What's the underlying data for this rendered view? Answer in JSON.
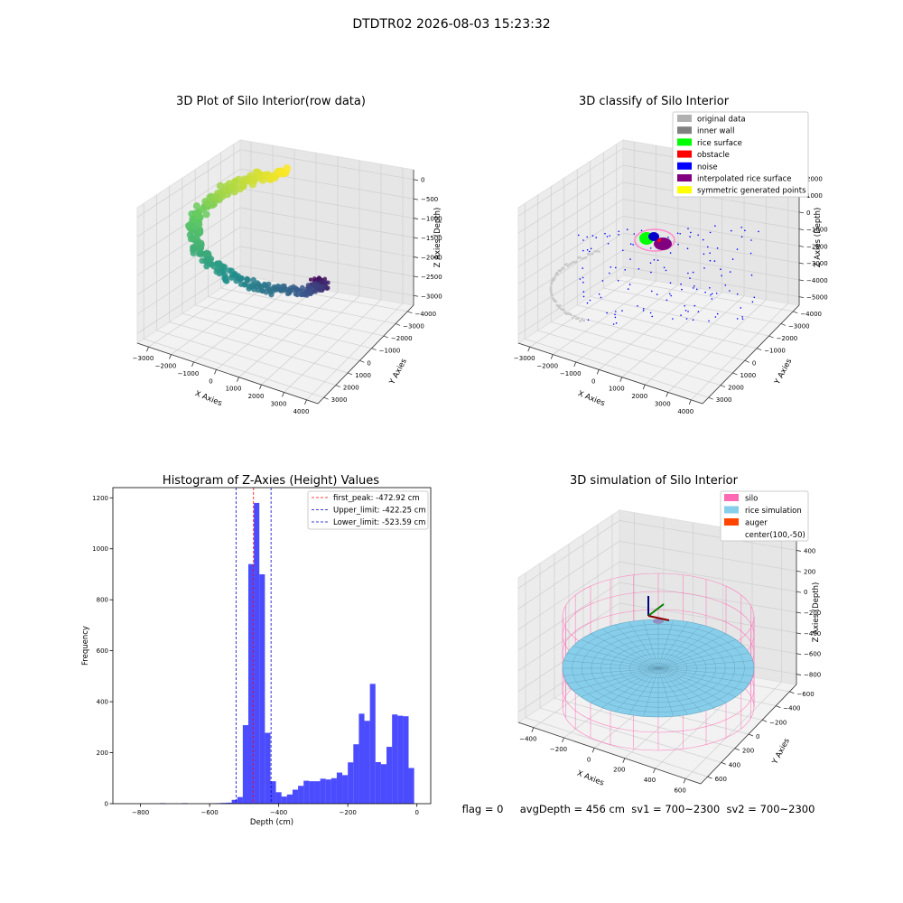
{
  "figure_title": "DTDTR02 2026-08-03 15:23:32",
  "footer_text": "flag = 0     avgDepth = 456 cm  sv1 = 700~2300  sv2 = 700~2300",
  "chart_data": [
    {
      "id": "raw3d",
      "type": "scatter",
      "title": "3D Plot of Silo Interior(row data)",
      "xlabel": "X Axies",
      "ylabel": "Y Axies",
      "zlabel": "Z Axies (Depth)",
      "x_ticks": [
        "−3000",
        "−2000",
        "−1000",
        "0",
        "1000",
        "2000",
        "3000",
        "4000"
      ],
      "y_ticks": [
        "−4000",
        "−3000",
        "−2000",
        "−1000",
        "0",
        "1000",
        "2000",
        "3000"
      ],
      "z_ticks": [
        "−3000",
        "−2500",
        "−2000",
        "−1500",
        "−1000",
        "−500",
        "0"
      ],
      "xlim": [
        -3600,
        4300
      ],
      "ylim": [
        -4300,
        3600
      ],
      "zlim": [
        -3400,
        200
      ],
      "colormap": [
        "#440154",
        "#3b528b",
        "#21918c",
        "#5ec962",
        "#fde725"
      ],
      "grid": true
    },
    {
      "id": "classify3d",
      "type": "scatter",
      "title": "3D classify of Silo Interior",
      "xlabel": "X Axies",
      "ylabel": "Y Axies",
      "zlabel": "Z Axies (Depth)",
      "x_ticks": [
        "−3000",
        "−2000",
        "−1000",
        "0",
        "1000",
        "2000",
        "3000",
        "4000"
      ],
      "y_ticks": [
        "−4000",
        "−3000",
        "−2000",
        "−1000",
        "0",
        "1000",
        "2000",
        "3000"
      ],
      "z_ticks": [
        "−5000",
        "−4000",
        "−3000",
        "−2000",
        "−1000",
        "0",
        "1000",
        "2000"
      ],
      "xlim": [
        -3600,
        4300
      ],
      "ylim": [
        -4300,
        3600
      ],
      "zlim": [
        -5300,
        2200
      ],
      "legend_position": "top-right",
      "legend": [
        {
          "label": "original data",
          "color": "#b0b0b0"
        },
        {
          "label": "inner wall",
          "color": "#808080"
        },
        {
          "label": "rice surface",
          "color": "#00ff00"
        },
        {
          "label": "obstacle",
          "color": "#ff0000"
        },
        {
          "label": "noise",
          "color": "#0000ff"
        },
        {
          "label": "interpolated rice surface",
          "color": "#800080"
        },
        {
          "label": "symmetric generated points",
          "color": "#ffff00"
        }
      ],
      "grid": true
    },
    {
      "id": "histogram",
      "type": "bar",
      "title": "Histogram of Z-Axies (Height) Values",
      "xlabel": "Depth (cm)",
      "ylabel": "Frequency",
      "xlim": [
        -880,
        40
      ],
      "ylim": [
        0,
        1240
      ],
      "x_ticks": [
        -800,
        -600,
        -400,
        -200,
        0
      ],
      "x_tick_labels": [
        "−800",
        "−600",
        "−400",
        "−200",
        "0"
      ],
      "y_ticks": [
        0,
        200,
        400,
        600,
        800,
        1000,
        1200
      ],
      "bar_color": "#0000ff",
      "bins": [
        {
          "x0": -744,
          "x1": -728,
          "value": 2
        },
        {
          "x0": -680,
          "x1": -664,
          "value": 2
        },
        {
          "x0": -600,
          "x1": -584,
          "value": 1
        },
        {
          "x0": -584,
          "x1": -568,
          "value": 2
        },
        {
          "x0": -568,
          "x1": -552,
          "value": 3
        },
        {
          "x0": -552,
          "x1": -536,
          "value": 4
        },
        {
          "x0": -536,
          "x1": -520,
          "value": 15
        },
        {
          "x0": -520,
          "x1": -504,
          "value": 26
        },
        {
          "x0": -504,
          "x1": -488,
          "value": 308
        },
        {
          "x0": -488,
          "x1": -472,
          "value": 940
        },
        {
          "x0": -472,
          "x1": -456,
          "value": 1180
        },
        {
          "x0": -456,
          "x1": -440,
          "value": 900
        },
        {
          "x0": -440,
          "x1": -424,
          "value": 278
        },
        {
          "x0": -424,
          "x1": -408,
          "value": 88
        },
        {
          "x0": -408,
          "x1": -392,
          "value": 45
        },
        {
          "x0": -392,
          "x1": -376,
          "value": 28
        },
        {
          "x0": -376,
          "x1": -360,
          "value": 36
        },
        {
          "x0": -360,
          "x1": -344,
          "value": 55
        },
        {
          "x0": -344,
          "x1": -328,
          "value": 70
        },
        {
          "x0": -328,
          "x1": -312,
          "value": 90
        },
        {
          "x0": -312,
          "x1": -296,
          "value": 88
        },
        {
          "x0": -296,
          "x1": -280,
          "value": 88
        },
        {
          "x0": -280,
          "x1": -264,
          "value": 98
        },
        {
          "x0": -264,
          "x1": -248,
          "value": 95
        },
        {
          "x0": -248,
          "x1": -232,
          "value": 100
        },
        {
          "x0": -232,
          "x1": -216,
          "value": 122
        },
        {
          "x0": -216,
          "x1": -200,
          "value": 112
        },
        {
          "x0": -200,
          "x1": -184,
          "value": 162
        },
        {
          "x0": -184,
          "x1": -168,
          "value": 233
        },
        {
          "x0": -168,
          "x1": -152,
          "value": 353
        },
        {
          "x0": -152,
          "x1": -136,
          "value": 325
        },
        {
          "x0": -136,
          "x1": -120,
          "value": 470
        },
        {
          "x0": -120,
          "x1": -104,
          "value": 163
        },
        {
          "x0": -104,
          "x1": -88,
          "value": 155
        },
        {
          "x0": -88,
          "x1": -72,
          "value": 223
        },
        {
          "x0": -72,
          "x1": -56,
          "value": 350
        },
        {
          "x0": -56,
          "x1": -40,
          "value": 345
        },
        {
          "x0": -40,
          "x1": -24,
          "value": 343
        },
        {
          "x0": -24,
          "x1": -8,
          "value": 140
        }
      ],
      "vlines": [
        {
          "label": "first_peak: -472.92 cm",
          "x": -472.92,
          "color": "#ff0000"
        },
        {
          "label": "Upper_limit: -422.25 cm",
          "x": -422.25,
          "color": "#0000cc"
        },
        {
          "label": "Lower_limit: -523.59 cm",
          "x": -523.59,
          "color": "#0000cc"
        }
      ],
      "legend_position": "top-right",
      "grid": false
    },
    {
      "id": "sim3d",
      "type": "area",
      "title": "3D simulation of Silo Interior",
      "xlabel": "X Axies",
      "ylabel": "Y Axies",
      "zlabel": "Z Axies (Depth)",
      "x_ticks": [
        "−400",
        "−200",
        "0",
        "200",
        "400",
        "600"
      ],
      "y_ticks": [
        "−600",
        "−400",
        "−200",
        "0",
        "200",
        "400",
        "600"
      ],
      "z_ticks": [
        "−800",
        "−600",
        "−400",
        "−200",
        "0",
        "200",
        "400"
      ],
      "xlim": [
        -550,
        700
      ],
      "ylim": [
        -700,
        650
      ],
      "zlim": [
        -900,
        450
      ],
      "legend_position": "top-right",
      "legend": [
        {
          "label": "silo",
          "color": "#ff69b4"
        },
        {
          "label": "rice simulation",
          "color": "#87ceeb"
        },
        {
          "label": "auger",
          "color": "#ff4500"
        },
        {
          "label": "center(100,-50)",
          "color": ""
        }
      ],
      "grid": true
    }
  ]
}
